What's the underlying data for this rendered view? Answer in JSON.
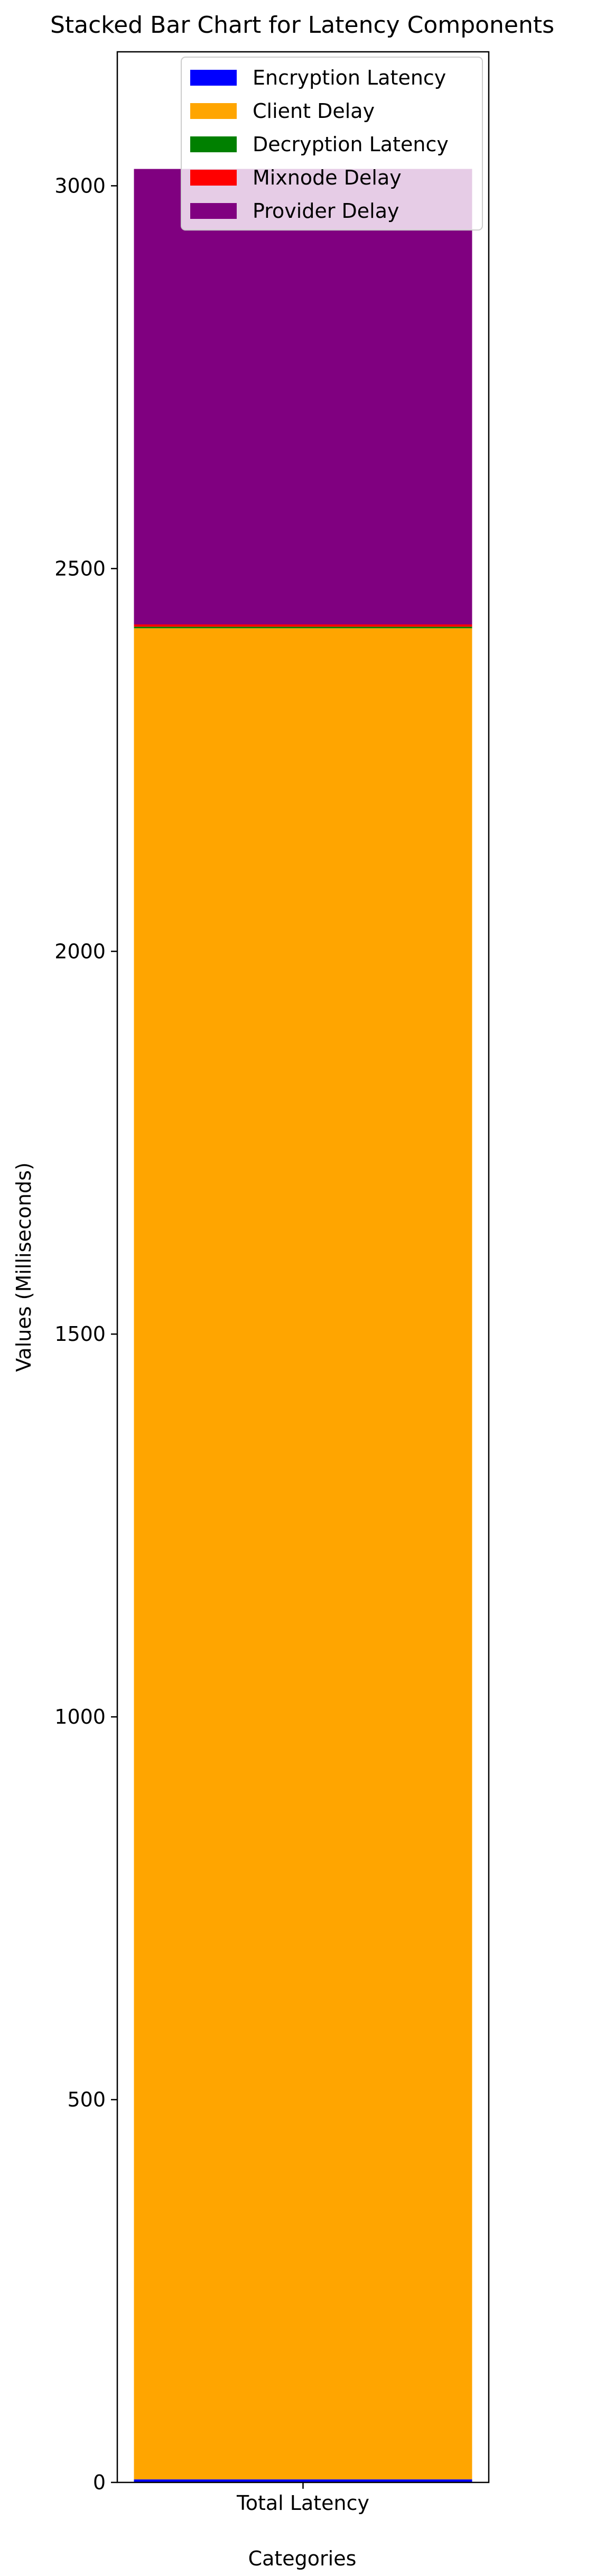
{
  "chart_data": {
    "type": "bar",
    "stacked": true,
    "title": "Stacked Bar Chart for Latency Components",
    "xlabel": "Categories",
    "ylabel": "Values (Milliseconds)",
    "categories": [
      "Total Latency"
    ],
    "ylim": [
      0,
      3175
    ],
    "yticks": [
      0,
      500,
      1000,
      1500,
      2000,
      2500,
      3000
    ],
    "grid": false,
    "legend_position": "top-right",
    "series": [
      {
        "name": "Encryption Latency",
        "color": "#0000ff",
        "values": [
          4
        ]
      },
      {
        "name": "Client Delay",
        "color": "#ffa500",
        "values": [
          2418
        ]
      },
      {
        "name": "Decryption Latency",
        "color": "#008000",
        "values": [
          2
        ]
      },
      {
        "name": "Mixnode Delay",
        "color": "#ff0000",
        "values": [
          3
        ]
      },
      {
        "name": "Provider Delay",
        "color": "#800080",
        "values": [
          595
        ]
      }
    ]
  }
}
